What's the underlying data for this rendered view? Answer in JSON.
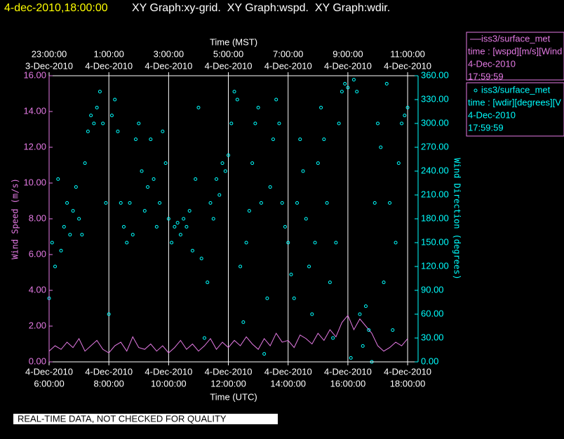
{
  "chart_data": {
    "type": "xy",
    "title": "4-dec-2010,18:00:00",
    "subtitle": "XY Graph:xy-grid.  XY Graph:wspd.  XY Graph:wdir.",
    "xlabel": "Time (UTC)",
    "x2label": "Time (MST)",
    "ylabel": "Wind Speed (m/s)",
    "y2label": "Wind Direction (degrees)",
    "footer": "REAL-TIME DATA, NOT CHECKED FOR QUALITY",
    "grid": true,
    "xlim": [
      6,
      18.35
    ],
    "xticks": [
      {
        "value": 6,
        "label": "6:00:00",
        "date": "4-Dec-2010"
      },
      {
        "value": 8,
        "label": "8:00:00",
        "date": "4-Dec-2010"
      },
      {
        "value": 10,
        "label": "10:00:00",
        "date": "4-Dec-2010"
      },
      {
        "value": 12,
        "label": "12:00:00",
        "date": "4-Dec-2010"
      },
      {
        "value": 14,
        "label": "14:00:00",
        "date": "4-Dec-2010"
      },
      {
        "value": 16,
        "label": "16:00:00",
        "date": "4-Dec-2010"
      },
      {
        "value": 18,
        "label": "18:00:00",
        "date": "4-Dec-2010"
      }
    ],
    "x2ticks": [
      {
        "value": 6,
        "label": "23:00:00",
        "date": "3-Dec-2010"
      },
      {
        "value": 8,
        "label": "1:00:00",
        "date": "4-Dec-2010"
      },
      {
        "value": 10,
        "label": "3:00:00",
        "date": "4-Dec-2010"
      },
      {
        "value": 12,
        "label": "5:00:00",
        "date": "4-Dec-2010"
      },
      {
        "value": 14,
        "label": "7:00:00",
        "date": "4-Dec-2010"
      },
      {
        "value": 16,
        "label": "9:00:00",
        "date": "4-Dec-2010"
      },
      {
        "value": 18,
        "label": "11:00:00",
        "date": "4-Dec-2010"
      }
    ],
    "ylim": [
      0,
      16
    ],
    "yticks": [
      {
        "value": 0,
        "label": "0.00"
      },
      {
        "value": 2,
        "label": "2.00"
      },
      {
        "value": 4,
        "label": "4.00"
      },
      {
        "value": 6,
        "label": "6.00"
      },
      {
        "value": 8,
        "label": "8.00"
      },
      {
        "value": 10,
        "label": "10.00"
      },
      {
        "value": 12,
        "label": "12.00"
      },
      {
        "value": 14,
        "label": "14.00"
      },
      {
        "value": 16,
        "label": "16.00"
      }
    ],
    "y2lim": [
      0,
      360
    ],
    "y2ticks": [
      {
        "value": 0,
        "label": "0.00"
      },
      {
        "value": 30,
        "label": "30.00"
      },
      {
        "value": 60,
        "label": "60.00"
      },
      {
        "value": 90,
        "label": "90.00"
      },
      {
        "value": 120,
        "label": "120.00"
      },
      {
        "value": 150,
        "label": "150.00"
      },
      {
        "value": 180,
        "label": "180.00"
      },
      {
        "value": 210,
        "label": "210.00"
      },
      {
        "value": 240,
        "label": "240.00"
      },
      {
        "value": 270,
        "label": "270.00"
      },
      {
        "value": 300,
        "label": "300.00"
      },
      {
        "value": 330,
        "label": "330.00"
      },
      {
        "value": 360,
        "label": "360.00"
      }
    ],
    "series": [
      {
        "name": "iss3/surface_met",
        "type": "line",
        "color": "#e47ae4",
        "variable": "time : [wspd][m/s][Wind",
        "date": "4-Dec-2010",
        "time": "17:59:59",
        "x": [
          6.0,
          6.2,
          6.4,
          6.6,
          6.8,
          7.0,
          7.2,
          7.4,
          7.6,
          7.8,
          8.0,
          8.2,
          8.4,
          8.6,
          8.8,
          9.0,
          9.2,
          9.4,
          9.6,
          9.8,
          10.0,
          10.2,
          10.4,
          10.6,
          10.8,
          11.0,
          11.2,
          11.4,
          11.6,
          11.8,
          12.0,
          12.2,
          12.4,
          12.6,
          12.8,
          13.0,
          13.2,
          13.4,
          13.6,
          13.8,
          14.0,
          14.2,
          14.4,
          14.6,
          14.8,
          15.0,
          15.2,
          15.4,
          15.6,
          15.8,
          16.0,
          16.2,
          16.4,
          16.6,
          16.8,
          17.0,
          17.2,
          17.4,
          17.6,
          17.8,
          18.0
        ],
        "values": [
          0.6,
          0.9,
          0.7,
          1.1,
          0.8,
          1.3,
          0.6,
          0.9,
          1.2,
          0.7,
          0.5,
          0.9,
          1.1,
          0.6,
          1.4,
          0.8,
          0.7,
          1.0,
          0.6,
          0.9,
          0.5,
          0.8,
          1.2,
          0.7,
          1.0,
          0.6,
          0.9,
          1.3,
          0.7,
          1.1,
          0.8,
          1.2,
          0.9,
          1.4,
          1.0,
          0.7,
          1.3,
          0.9,
          1.6,
          1.1,
          1.2,
          0.8,
          1.5,
          1.3,
          1.0,
          1.6,
          1.2,
          1.8,
          1.4,
          2.2,
          2.6,
          1.8,
          2.4,
          2.0,
          1.6,
          0.9,
          0.6,
          0.8,
          1.1,
          0.9,
          1.3
        ]
      },
      {
        "name": "iss3/surface_met",
        "type": "scatter",
        "axis": "y2",
        "color": "#00ffff",
        "variable": "time : [wdir][degrees][V",
        "date": "4-Dec-2010",
        "time": "17:59:59",
        "x": [
          6.0,
          6.1,
          6.2,
          6.3,
          6.4,
          6.5,
          6.6,
          6.7,
          6.8,
          6.9,
          7.0,
          7.1,
          7.2,
          7.3,
          7.4,
          7.5,
          7.6,
          7.7,
          7.8,
          7.9,
          8.0,
          8.1,
          8.2,
          8.3,
          8.4,
          8.5,
          8.6,
          8.7,
          8.8,
          8.9,
          9.0,
          9.1,
          9.2,
          9.3,
          9.4,
          9.5,
          9.6,
          9.7,
          9.8,
          9.9,
          10.0,
          10.1,
          10.2,
          10.3,
          10.4,
          10.5,
          10.6,
          10.7,
          10.8,
          10.9,
          11.0,
          11.1,
          11.2,
          11.3,
          11.4,
          11.5,
          11.6,
          11.7,
          11.8,
          11.9,
          12.0,
          12.1,
          12.2,
          12.3,
          12.4,
          12.5,
          12.6,
          12.7,
          12.8,
          12.9,
          13.0,
          13.1,
          13.2,
          13.3,
          13.4,
          13.5,
          13.6,
          13.7,
          13.8,
          13.9,
          14.0,
          14.1,
          14.2,
          14.3,
          14.4,
          14.5,
          14.6,
          14.7,
          14.8,
          14.9,
          15.0,
          15.1,
          15.2,
          15.3,
          15.4,
          15.5,
          15.6,
          15.7,
          15.8,
          15.9,
          16.0,
          16.1,
          16.2,
          16.3,
          16.4,
          16.5,
          16.6,
          16.7,
          16.8,
          16.9,
          17.0,
          17.1,
          17.2,
          17.3,
          17.4,
          17.5,
          17.6,
          17.7,
          17.8,
          17.9,
          18.0
        ],
        "values": [
          80,
          150,
          120,
          230,
          140,
          170,
          200,
          160,
          190,
          220,
          180,
          160,
          250,
          290,
          310,
          300,
          320,
          340,
          300,
          200,
          60,
          310,
          330,
          290,
          200,
          170,
          150,
          200,
          160,
          280,
          300,
          240,
          190,
          220,
          280,
          230,
          170,
          200,
          290,
          250,
          180,
          150,
          170,
          175,
          160,
          180,
          170,
          190,
          140,
          230,
          320,
          130,
          30,
          100,
          200,
          180,
          230,
          210,
          250,
          240,
          260,
          300,
          340,
          330,
          120,
          50,
          150,
          190,
          250,
          300,
          320,
          200,
          10,
          80,
          220,
          280,
          330,
          300,
          200,
          170,
          150,
          110,
          80,
          200,
          280,
          240,
          180,
          120,
          60,
          150,
          250,
          320,
          280,
          200,
          100,
          30,
          150,
          300,
          340,
          350,
          345,
          5,
          355,
          340,
          60,
          20,
          70,
          40,
          0,
          200,
          300,
          270,
          100,
          350,
          200,
          40,
          150,
          250,
          300,
          310,
          320
        ]
      }
    ]
  }
}
